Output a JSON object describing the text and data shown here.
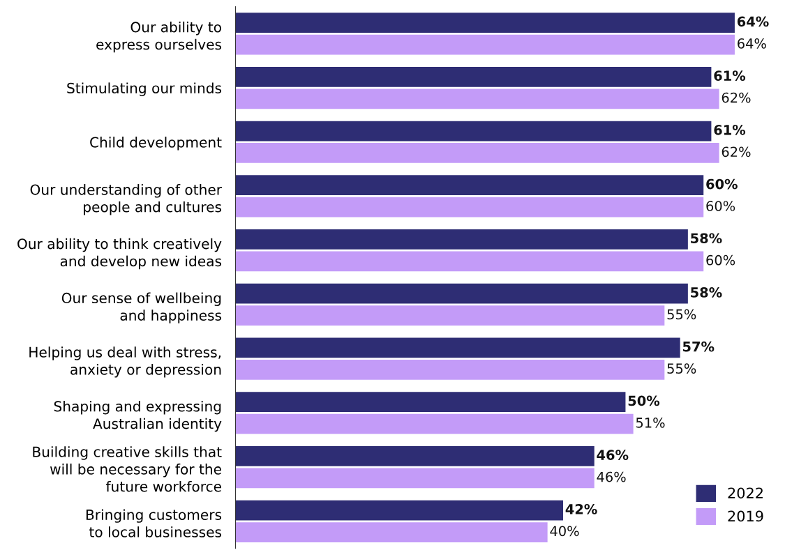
{
  "chart_data": {
    "type": "bar",
    "orientation": "horizontal",
    "categories": [
      "Our ability to\nexpress ourselves",
      "Stimulating our minds",
      "Child development",
      "Our understanding of other\npeople and cultures",
      "Our ability to think creatively\nand develop new ideas",
      "Our sense of wellbeing\nand happiness",
      "Helping us deal with stress,\nanxiety or depression",
      "Shaping and expressing\nAustralian identity",
      "Building creative skills that\nwill be necessary for the\nfuture workforce",
      "Bringing customers\nto local businesses"
    ],
    "series": [
      {
        "name": "2022",
        "color": "#2e2d74",
        "values": [
          64,
          61,
          61,
          60,
          58,
          58,
          57,
          50,
          46,
          42
        ],
        "value_labels": [
          "64%",
          "61%",
          "61%",
          "60%",
          "58%",
          "58%",
          "57%",
          "50%",
          "46%",
          "42%"
        ]
      },
      {
        "name": "2019",
        "color": "#c39bf8",
        "values": [
          64,
          62,
          62,
          60,
          60,
          55,
          55,
          51,
          46,
          40
        ],
        "value_labels": [
          "64%",
          "62%",
          "62%",
          "60%",
          "60%",
          "55%",
          "55%",
          "51%",
          "46%",
          "40%"
        ]
      }
    ],
    "legend": "bottom right"
  }
}
